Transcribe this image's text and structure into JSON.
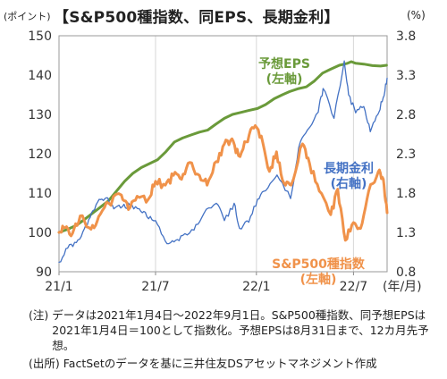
{
  "header": {
    "unit_left": "(ポイント)",
    "title": "【S&P500種指数、同EPS、長期金利】",
    "unit_right": "(%)"
  },
  "chart_data": {
    "type": "line",
    "title": "【S&P500種指数、同EPS、長期金利】",
    "y_left": {
      "label": "(ポイント)",
      "ylim": [
        90,
        150
      ],
      "ticks": [
        "150",
        "140",
        "130",
        "120",
        "110",
        "100",
        "90"
      ]
    },
    "y_right": {
      "label": "(%)",
      "ylim": [
        0.8,
        3.8
      ],
      "ticks": [
        "3.8",
        "3.3",
        "2.8",
        "2.3",
        "1.8",
        "1.3",
        "0.8"
      ]
    },
    "x_ticks": [
      "21/1",
      "21/7",
      "22/1",
      "22/7"
    ],
    "x_unit": "(年/月)",
    "x_range": [
      "2021-01-04",
      "2022-09-01"
    ],
    "grid": "vertical",
    "series": [
      {
        "name": "予想EPS (左軸)",
        "axis": "left",
        "color": "#6a9a3a",
        "label_lines": [
          "予想EPS",
          "(左軸)"
        ],
        "points": [
          [
            "2021-01-04",
            100
          ],
          [
            "2021-01-20",
            100.8
          ],
          [
            "2021-02-05",
            101.8
          ],
          [
            "2021-02-22",
            103.5
          ],
          [
            "2021-03-08",
            105
          ],
          [
            "2021-03-22",
            106.5
          ],
          [
            "2021-04-05",
            108
          ],
          [
            "2021-04-20",
            110.5
          ],
          [
            "2021-05-05",
            113
          ],
          [
            "2021-05-20",
            115
          ],
          [
            "2021-06-05",
            116.5
          ],
          [
            "2021-06-20",
            117.5
          ],
          [
            "2021-07-05",
            118.5
          ],
          [
            "2021-07-20",
            120.5
          ],
          [
            "2021-08-05",
            123
          ],
          [
            "2021-08-20",
            124
          ],
          [
            "2021-09-05",
            124.8
          ],
          [
            "2021-09-20",
            125.5
          ],
          [
            "2021-10-05",
            126
          ],
          [
            "2021-10-20",
            127.5
          ],
          [
            "2021-11-05",
            129
          ],
          [
            "2021-11-20",
            130
          ],
          [
            "2021-12-05",
            130.5
          ],
          [
            "2021-12-20",
            131
          ],
          [
            "2022-01-05",
            131.5
          ],
          [
            "2022-01-20",
            132.5
          ],
          [
            "2022-02-05",
            134
          ],
          [
            "2022-02-20",
            135
          ],
          [
            "2022-03-05",
            135.8
          ],
          [
            "2022-03-20",
            136.5
          ],
          [
            "2022-04-05",
            137
          ],
          [
            "2022-04-20",
            138.5
          ],
          [
            "2022-05-05",
            140.5
          ],
          [
            "2022-05-20",
            141.5
          ],
          [
            "2022-06-05",
            142.5
          ],
          [
            "2022-06-20",
            143
          ],
          [
            "2022-06-27",
            143.4
          ],
          [
            "2022-07-05",
            143
          ],
          [
            "2022-07-20",
            142.8
          ],
          [
            "2022-08-05",
            142.4
          ],
          [
            "2022-08-20",
            142.3
          ],
          [
            "2022-08-31",
            142.5
          ]
        ]
      },
      {
        "name": "長期金利 (右軸)",
        "axis": "right",
        "color": "#4472c4",
        "label_lines": [
          "長期金利",
          "(右軸)"
        ],
        "points": [
          [
            "2021-01-04",
            0.92
          ],
          [
            "2021-01-20",
            1.1
          ],
          [
            "2021-02-05",
            1.17
          ],
          [
            "2021-02-20",
            1.35
          ],
          [
            "2021-03-05",
            1.55
          ],
          [
            "2021-03-19",
            1.72
          ],
          [
            "2021-04-01",
            1.74
          ],
          [
            "2021-04-15",
            1.6
          ],
          [
            "2021-05-01",
            1.63
          ],
          [
            "2021-05-15",
            1.64
          ],
          [
            "2021-06-01",
            1.6
          ],
          [
            "2021-06-15",
            1.5
          ],
          [
            "2021-07-01",
            1.45
          ],
          [
            "2021-07-19",
            1.19
          ],
          [
            "2021-08-04",
            1.18
          ],
          [
            "2021-08-20",
            1.26
          ],
          [
            "2021-09-10",
            1.33
          ],
          [
            "2021-09-28",
            1.54
          ],
          [
            "2021-10-21",
            1.67
          ],
          [
            "2021-11-05",
            1.45
          ],
          [
            "2021-11-23",
            1.67
          ],
          [
            "2021-12-03",
            1.35
          ],
          [
            "2021-12-20",
            1.43
          ],
          [
            "2022-01-05",
            1.72
          ],
          [
            "2022-01-20",
            1.83
          ],
          [
            "2022-02-10",
            2.03
          ],
          [
            "2022-03-07",
            1.73
          ],
          [
            "2022-03-22",
            2.38
          ],
          [
            "2022-04-07",
            2.6
          ],
          [
            "2022-04-27",
            2.83
          ],
          [
            "2022-05-06",
            3.13
          ],
          [
            "2022-05-26",
            2.75
          ],
          [
            "2022-06-14",
            3.48
          ],
          [
            "2022-06-22",
            3.05
          ],
          [
            "2022-07-05",
            2.82
          ],
          [
            "2022-07-20",
            2.9
          ],
          [
            "2022-08-01",
            2.58
          ],
          [
            "2022-08-15",
            2.8
          ],
          [
            "2022-08-25",
            3.02
          ],
          [
            "2022-09-01",
            3.26
          ]
        ]
      },
      {
        "name": "S&P500種指数 (左軸)",
        "axis": "left",
        "color": "#f0924a",
        "label_lines": [
          "S&P500種指数",
          "(左軸)"
        ],
        "points": [
          [
            "2021-01-04",
            100
          ],
          [
            "2021-01-15",
            101.2
          ],
          [
            "2021-01-29",
            99.8
          ],
          [
            "2021-02-12",
            104.2
          ],
          [
            "2021-03-04",
            100.8
          ],
          [
            "2021-03-18",
            104
          ],
          [
            "2021-04-05",
            107.5
          ],
          [
            "2021-04-29",
            109.5
          ],
          [
            "2021-05-12",
            105.8
          ],
          [
            "2021-05-28",
            109.2
          ],
          [
            "2021-06-18",
            108.5
          ],
          [
            "2021-07-01",
            113
          ],
          [
            "2021-07-19",
            112
          ],
          [
            "2021-08-03",
            114.5
          ],
          [
            "2021-08-18",
            113.5
          ],
          [
            "2021-09-02",
            117.8
          ],
          [
            "2021-09-20",
            114.5
          ],
          [
            "2021-10-04",
            112
          ],
          [
            "2021-10-21",
            118
          ],
          [
            "2021-11-05",
            122.5
          ],
          [
            "2021-11-19",
            123.8
          ],
          [
            "2021-12-01",
            119.5
          ],
          [
            "2021-12-15",
            123
          ],
          [
            "2021-12-29",
            126.5
          ],
          [
            "2022-01-12",
            124.5
          ],
          [
            "2022-01-27",
            115.5
          ],
          [
            "2022-02-09",
            120.5
          ],
          [
            "2022-02-23",
            112.5
          ],
          [
            "2022-03-08",
            112
          ],
          [
            "2022-03-29",
            122.5
          ],
          [
            "2022-04-11",
            117.5
          ],
          [
            "2022-04-29",
            110.5
          ],
          [
            "2022-05-20",
            104.5
          ],
          [
            "2022-06-02",
            111
          ],
          [
            "2022-06-16",
            98
          ],
          [
            "2022-07-01",
            102.5
          ],
          [
            "2022-07-14",
            101
          ],
          [
            "2022-07-29",
            110.5
          ],
          [
            "2022-08-16",
            115.5
          ],
          [
            "2022-08-25",
            113.5
          ],
          [
            "2022-09-01",
            105
          ]
        ]
      }
    ]
  },
  "notes": {
    "note_label": "(注)",
    "note_text": "データは2021年1月4日～2022年9月1日。S&P500種指数、同予想EPSは2021年1月4日＝100として指数化。予想EPSは8月31日まで、12カ月先予想。",
    "source_label": "(出所)",
    "source_text": "FactSetのデータを基に三井住友DSアセットマネジメント作成"
  }
}
